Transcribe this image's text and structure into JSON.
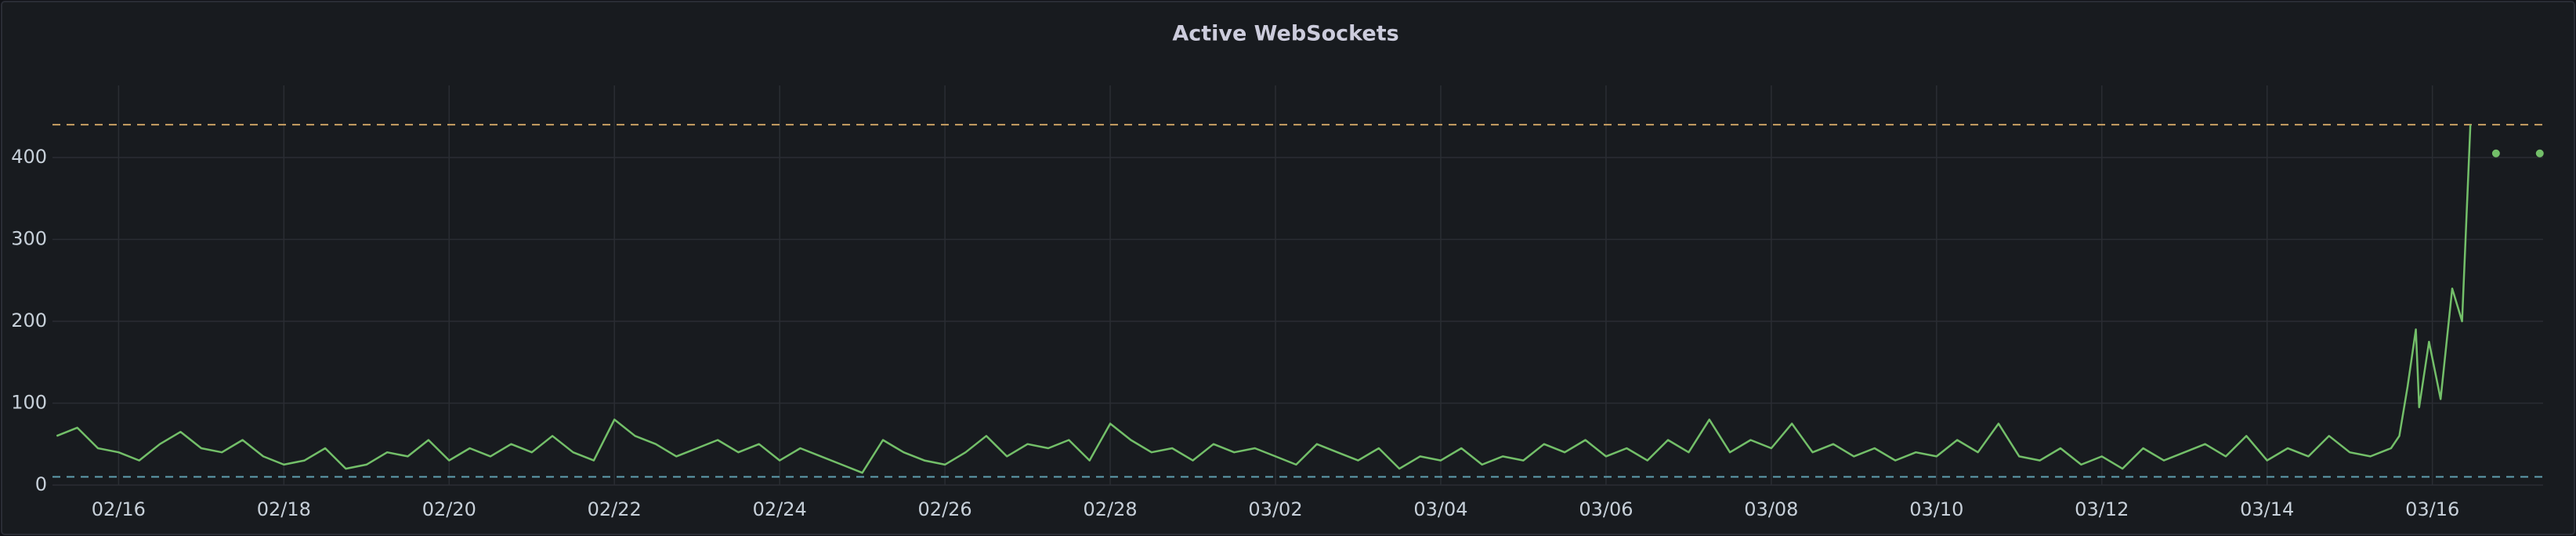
{
  "chart_data": {
    "type": "line",
    "title": "Active WebSockets",
    "x": [
      46.25,
      46.5,
      46.75,
      47,
      47.25,
      47.5,
      47.75,
      48,
      48.25,
      48.5,
      48.75,
      49,
      49.25,
      49.5,
      49.75,
      50,
      50.25,
      50.5,
      50.75,
      51,
      51.25,
      51.5,
      51.75,
      52,
      52.25,
      52.5,
      52.75,
      53,
      53.25,
      53.5,
      53.75,
      54,
      54.25,
      54.5,
      54.75,
      55,
      55.25,
      55.5,
      55.75,
      56,
      56.25,
      56.5,
      56.75,
      57,
      57.25,
      57.5,
      57.75,
      58,
      58.25,
      58.5,
      58.75,
      59,
      59.25,
      59.5,
      59.75,
      60,
      60.25,
      60.5,
      60.75,
      61,
      61.25,
      61.5,
      61.75,
      62,
      62.25,
      62.5,
      62.75,
      63,
      63.25,
      63.5,
      63.75,
      64,
      64.25,
      64.5,
      64.75,
      65,
      65.25,
      65.5,
      65.75,
      66,
      66.25,
      66.5,
      66.75,
      67,
      67.25,
      67.5,
      67.75,
      68,
      68.25,
      68.5,
      68.75,
      69,
      69.25,
      69.5,
      69.75,
      70,
      70.25,
      70.5,
      70.75,
      71,
      71.25,
      71.5,
      71.75,
      72,
      72.25,
      72.5,
      72.75,
      73,
      73.25,
      73.5,
      73.75,
      74,
      74.25,
      74.5,
      74.6,
      74.7,
      74.8,
      74.84,
      74.96,
      75.1,
      75.24,
      75.36,
      75.46,
      75.6,
      75.77,
      76.0,
      76.3
    ],
    "values": [
      60,
      70,
      45,
      40,
      30,
      50,
      65,
      45,
      40,
      55,
      35,
      25,
      30,
      45,
      20,
      25,
      40,
      35,
      55,
      30,
      45,
      35,
      50,
      40,
      60,
      40,
      30,
      80,
      60,
      50,
      35,
      45,
      55,
      40,
      50,
      30,
      45,
      35,
      25,
      15,
      55,
      40,
      30,
      25,
      40,
      60,
      35,
      50,
      45,
      55,
      30,
      75,
      55,
      40,
      45,
      30,
      50,
      40,
      45,
      35,
      25,
      50,
      40,
      30,
      45,
      20,
      35,
      30,
      45,
      25,
      35,
      30,
      50,
      40,
      55,
      35,
      45,
      30,
      55,
      40,
      80,
      40,
      55,
      45,
      75,
      40,
      50,
      35,
      45,
      30,
      40,
      35,
      55,
      40,
      75,
      35,
      30,
      45,
      25,
      35,
      20,
      45,
      30,
      40,
      50,
      35,
      60,
      30,
      45,
      35,
      60,
      40,
      35,
      45,
      60,
      120,
      190,
      95,
      175,
      105,
      240,
      200,
      440,
      null,
      405,
      null,
      405
    ],
    "color": "#73bf69",
    "xlim": [
      46.2,
      76.34
    ],
    "xticks": [
      {
        "value": 47,
        "label": "02/16"
      },
      {
        "value": 49,
        "label": "02/18"
      },
      {
        "value": 51,
        "label": "02/20"
      },
      {
        "value": 53,
        "label": "02/22"
      },
      {
        "value": 55,
        "label": "02/24"
      },
      {
        "value": 57,
        "label": "02/26"
      },
      {
        "value": 59,
        "label": "02/28"
      },
      {
        "value": 61,
        "label": "03/02"
      },
      {
        "value": 63,
        "label": "03/04"
      },
      {
        "value": 65,
        "label": "03/06"
      },
      {
        "value": 67,
        "label": "03/08"
      },
      {
        "value": 69,
        "label": "03/10"
      },
      {
        "value": 71,
        "label": "03/12"
      },
      {
        "value": 73,
        "label": "03/14"
      },
      {
        "value": 75,
        "label": "03/16"
      }
    ],
    "ylim": [
      0,
      488
    ],
    "yticks": [
      0,
      100,
      200,
      300,
      400
    ],
    "grid": true,
    "thresholds": [
      {
        "value": 440,
        "color": "#c9a063"
      },
      {
        "value": 10,
        "color": "#5f9fb0"
      }
    ]
  }
}
